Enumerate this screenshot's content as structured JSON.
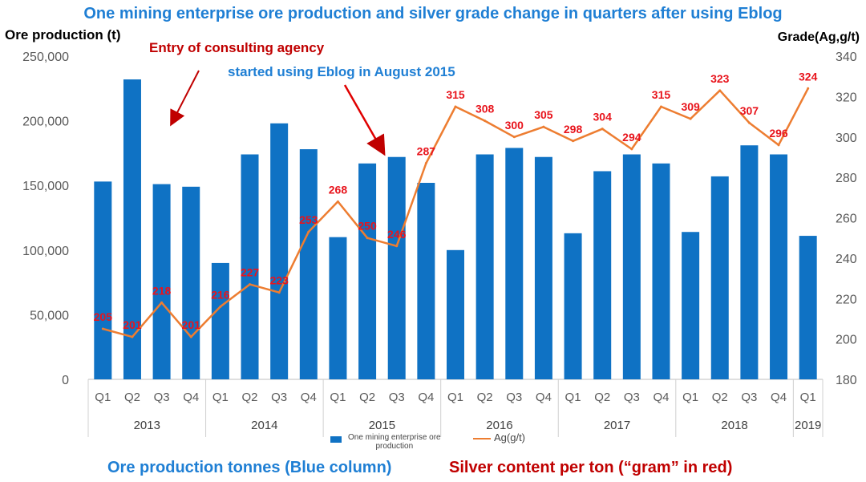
{
  "title": "One mining enterprise ore production and silver grade change in quarters after using Eblog",
  "ylabel_left": "Ore production (t)",
  "ylabel_right": "Grade(Ag,g/t)",
  "annotations": {
    "consulting": "Entry of consulting agency",
    "eblog": "started using Eblog in August 2015"
  },
  "captions": {
    "left": "Ore production tonnes (Blue column)",
    "right": "Silver content per ton (“gram” in red)"
  },
  "legend": {
    "bar_line1": "One mining enterprise ore",
    "bar_line2": "production",
    "line": "Ag(g/t)"
  },
  "colors": {
    "bar": "#0f72c4",
    "line": "#ed7d31",
    "label": "#e8141c",
    "title": "#1f7fd4",
    "annotation": "#c00000"
  },
  "chart_data": {
    "type": "bar+line",
    "quarters": [
      "Q1",
      "Q2",
      "Q3",
      "Q4",
      "Q1",
      "Q2",
      "Q3",
      "Q4",
      "Q1",
      "Q2",
      "Q3",
      "Q4",
      "Q1",
      "Q2",
      "Q3",
      "Q4",
      "Q1",
      "Q2",
      "Q3",
      "Q4",
      "Q1",
      "Q2",
      "Q3",
      "Q4",
      "Q1"
    ],
    "years": [
      {
        "label": "2013",
        "count": 4
      },
      {
        "label": "2014",
        "count": 4
      },
      {
        "label": "2015",
        "count": 4
      },
      {
        "label": "2016",
        "count": 4
      },
      {
        "label": "2017",
        "count": 4
      },
      {
        "label": "2018",
        "count": 4
      },
      {
        "label": "2019",
        "count": 1
      }
    ],
    "series": [
      {
        "name": "One mining enterprise ore production",
        "type": "bar",
        "axis": "left",
        "values": [
          153000,
          232000,
          151000,
          149000,
          90000,
          174000,
          198000,
          178000,
          110000,
          167000,
          172000,
          152000,
          100000,
          174000,
          179000,
          172000,
          113000,
          161000,
          174000,
          167000,
          114000,
          157000,
          181000,
          174000,
          111000
        ]
      },
      {
        "name": "Ag(g/t)",
        "type": "line",
        "axis": "right",
        "values": [
          205,
          201,
          218,
          201,
          216,
          227,
          223,
          253,
          268,
          250,
          246,
          287,
          315,
          308,
          300,
          305,
          298,
          304,
          294,
          315,
          309,
          323,
          307,
          296,
          324
        ]
      }
    ],
    "y_left": {
      "min": 0,
      "max": 250000,
      "ticks": [
        "0",
        "50,000",
        "100,000",
        "150,000",
        "200,000",
        "250,000"
      ]
    },
    "y_right": {
      "min": 180,
      "max": 340,
      "ticks": [
        "180",
        "200",
        "220",
        "240",
        "260",
        "280",
        "300",
        "320",
        "340"
      ]
    },
    "grid": false,
    "legend_position": "bottom"
  }
}
